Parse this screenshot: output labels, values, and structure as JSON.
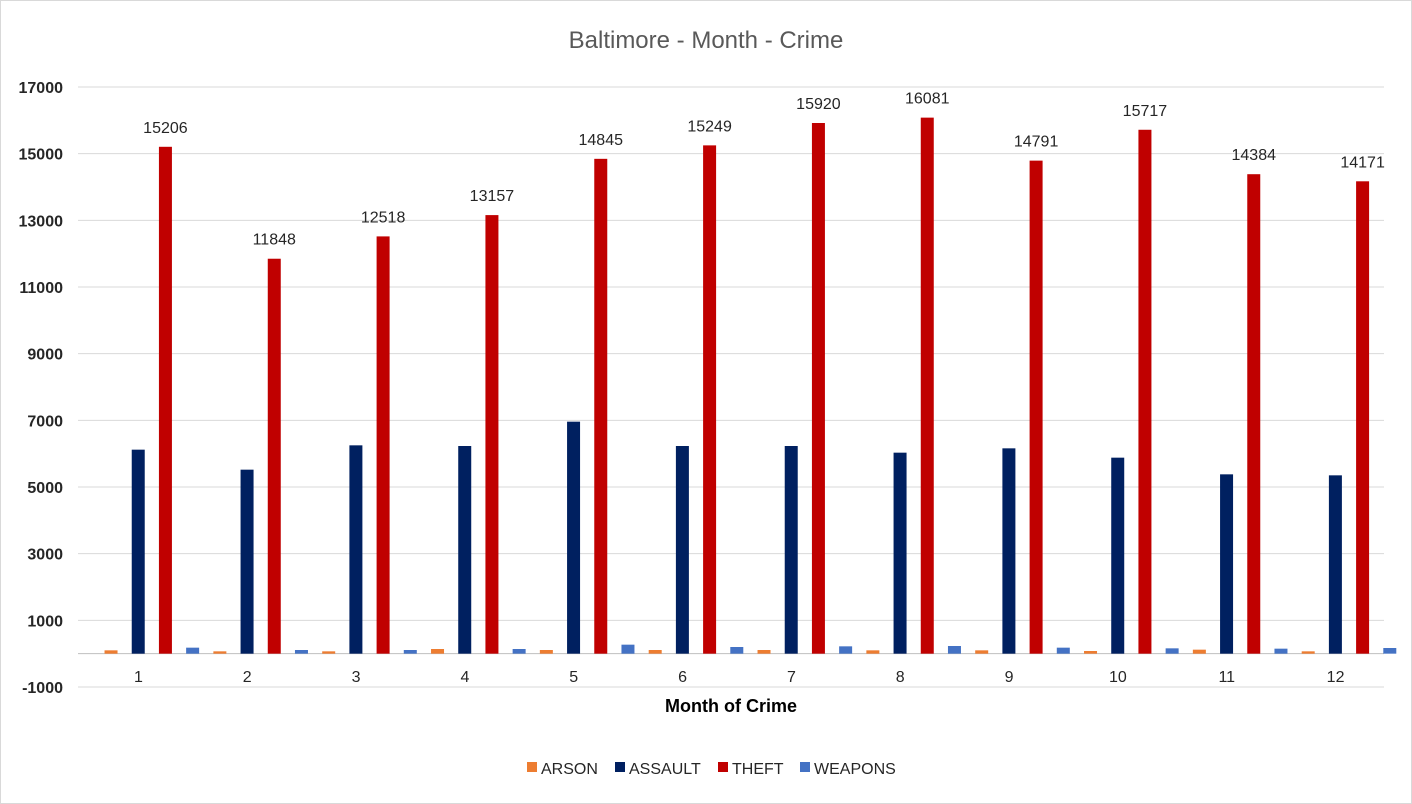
{
  "chart_data": {
    "type": "bar",
    "title": "Baltimore - Month - Crime",
    "xlabel": "Month of Crime",
    "ylabel": "",
    "ylim": [
      -1000,
      17000
    ],
    "yticks": [
      -1000,
      1000,
      3000,
      5000,
      7000,
      9000,
      11000,
      13000,
      15000,
      17000
    ],
    "grid": true,
    "legend_position": "bottom",
    "categories": [
      "1",
      "2",
      "3",
      "4",
      "5",
      "6",
      "7",
      "8",
      "9",
      "10",
      "11",
      "12"
    ],
    "series": [
      {
        "name": "ARSON",
        "color": "#ed7d31",
        "values": [
          100,
          70,
          70,
          140,
          110,
          110,
          110,
          100,
          100,
          80,
          120,
          70
        ]
      },
      {
        "name": "ASSAULT",
        "color": "#002060",
        "values": [
          6120,
          5520,
          6250,
          6230,
          6960,
          6230,
          6230,
          6030,
          6160,
          5880,
          5380,
          5350
        ]
      },
      {
        "name": "THEFT",
        "color": "#c00000",
        "show_labels": true,
        "values": [
          15206,
          11848,
          12518,
          13157,
          14845,
          15249,
          15920,
          16081,
          14791,
          15717,
          14384,
          14171
        ]
      },
      {
        "name": "WEAPONS",
        "color": "#4472c4",
        "values": [
          180,
          110,
          110,
          140,
          270,
          200,
          220,
          230,
          180,
          160,
          150,
          170
        ]
      }
    ]
  }
}
